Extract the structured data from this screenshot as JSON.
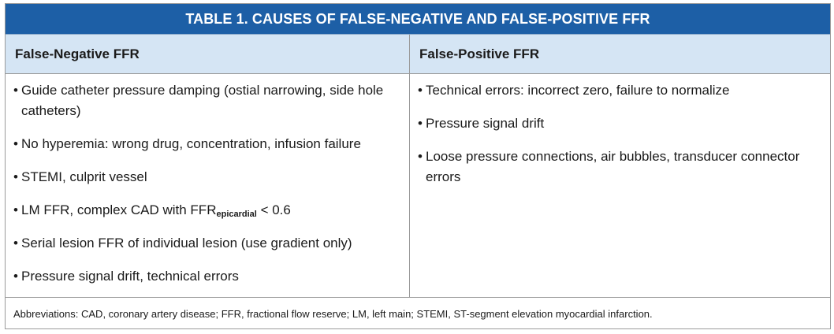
{
  "title": "TABLE 1.  CAUSES OF FALSE-NEGATIVE AND FALSE-POSITIVE FFR",
  "columns": {
    "left_header": "False-Negative FFR",
    "right_header": "False-Positive FFR"
  },
  "bullet": "•",
  "false_negative": {
    "item1": "Guide catheter pressure damping (ostial narrowing, side hole catheters)",
    "item2": "No hyperemia: wrong drug, concentration, infusion failure",
    "item3": "STEMI, culprit vessel",
    "item4_prefix": "LM FFR, complex CAD with FFR",
    "item4_sub": "epicardial",
    "item4_suffix": " < 0.6",
    "item5": "Serial lesion FFR of individual lesion (use gradient only)",
    "item6": "Pressure signal drift, technical errors"
  },
  "false_positive": {
    "item1": "Technical errors: incorrect zero, failure to normalize",
    "item2": "Pressure signal drift",
    "item3": "Loose pressure connections, air bubbles, transducer connector errors"
  },
  "footnote": "Abbreviations: CAD, coronary artery disease; FFR, fractional flow reserve; LM, left main; STEMI, ST-segment elevation myocardial infarction.",
  "colors": {
    "title_bg": "#1d5fa6",
    "header_bg": "#d5e5f4"
  }
}
